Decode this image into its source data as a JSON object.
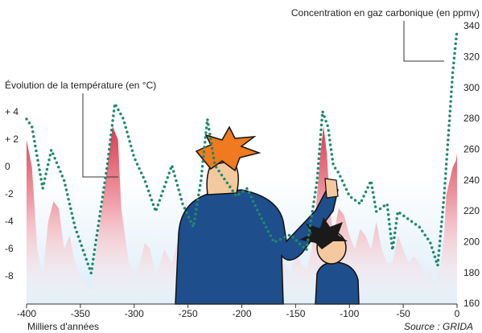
{
  "chart_data": {
    "type": "line",
    "xlim": [
      -400,
      0
    ],
    "xticks": [
      -400,
      -350,
      -300,
      -250,
      -200,
      -150,
      -100,
      -50,
      0
    ],
    "x_label": "Milliers d'années",
    "source": "Source : GRIDA",
    "ylim": [
      -10,
      10
    ],
    "yticks": [
      {
        "value": 4,
        "label": "+ 4"
      },
      {
        "value": 2,
        "label": "+ 2"
      },
      0,
      -2,
      -4,
      -6,
      -8
    ],
    "y2lim": [
      160,
      340
    ],
    "y2ticks": [
      160,
      180,
      200,
      220,
      240,
      260,
      280,
      300,
      320,
      340
    ],
    "series": [
      {
        "name": "Évolution de la température (en °C)",
        "color": "#d9344a",
        "style": "area",
        "x": [
          -400,
          -395,
          -390,
          -385,
          -380,
          -375,
          -370,
          -365,
          -360,
          -355,
          -350,
          -345,
          -340,
          -335,
          -330,
          -325,
          -320,
          -315,
          -312,
          -305,
          -298,
          -290,
          -285,
          -280,
          -272,
          -265,
          -258,
          -250,
          -245,
          -240,
          -235,
          -230,
          -225,
          -220,
          -215,
          -210,
          -205,
          -200,
          -195,
          -190,
          -185,
          -180,
          -175,
          -170,
          -165,
          -160,
          -155,
          -150,
          -145,
          -140,
          -135,
          -130,
          -127,
          -124,
          -121,
          -118,
          -115,
          -110,
          -105,
          -100,
          -95,
          -90,
          -85,
          -80,
          -75,
          -70,
          -65,
          -60,
          -55,
          -50,
          -45,
          -40,
          -35,
          -30,
          -25,
          -20,
          -15,
          -12,
          -10,
          -7,
          -4,
          -1,
          0
        ],
        "values": [
          2,
          0,
          -6,
          -8,
          -4,
          -2.5,
          -3,
          -6,
          -5,
          -7,
          -8,
          -8.5,
          -9,
          -6,
          -3,
          0,
          3,
          2,
          -3,
          -7,
          -8,
          -5.5,
          -6,
          -8,
          -6,
          -7,
          -5,
          -4.5,
          -5,
          -3,
          -2,
          -5,
          -7,
          -8,
          -6,
          -5,
          -3,
          -6,
          -8,
          -7,
          -5,
          -6,
          -8,
          -7,
          -6,
          -7,
          -8,
          -6,
          -7,
          -7.5,
          -6,
          -2,
          1,
          3,
          1,
          -3,
          -5,
          -3,
          -3.5,
          -5,
          -6,
          -4.5,
          -5,
          -6,
          -4,
          -6,
          -7,
          -7,
          -5,
          -6,
          -7,
          -6.5,
          -7,
          -8,
          -7.5,
          -8.5,
          -7,
          -5,
          -2,
          -1,
          0,
          0.5,
          1
        ]
      },
      {
        "name": "Concentration en gaz carbonique (en ppmv)",
        "color": "#1f8a6a",
        "style": "dotted",
        "axis": "y2",
        "x": [
          -400,
          -395,
          -385,
          -377,
          -365,
          -355,
          -340,
          -325,
          -318,
          -310,
          -300,
          -290,
          -280,
          -265,
          -255,
          -245,
          -238,
          -232,
          -225,
          -215,
          -205,
          -195,
          -185,
          -170,
          -155,
          -140,
          -130,
          -125,
          -120,
          -115,
          -110,
          -100,
          -90,
          -80,
          -75,
          -65,
          -60,
          -55,
          -45,
          -35,
          -25,
          -18,
          -12,
          -8,
          -4,
          0
        ],
        "values": [
          280,
          275,
          235,
          260,
          240,
          210,
          180,
          250,
          290,
          280,
          255,
          240,
          220,
          250,
          225,
          210,
          240,
          280,
          250,
          240,
          230,
          235,
          220,
          200,
          205,
          195,
          240,
          285,
          275,
          250,
          245,
          230,
          225,
          240,
          220,
          225,
          195,
          220,
          215,
          210,
          200,
          185,
          230,
          270,
          310,
          338
        ]
      }
    ]
  }
}
